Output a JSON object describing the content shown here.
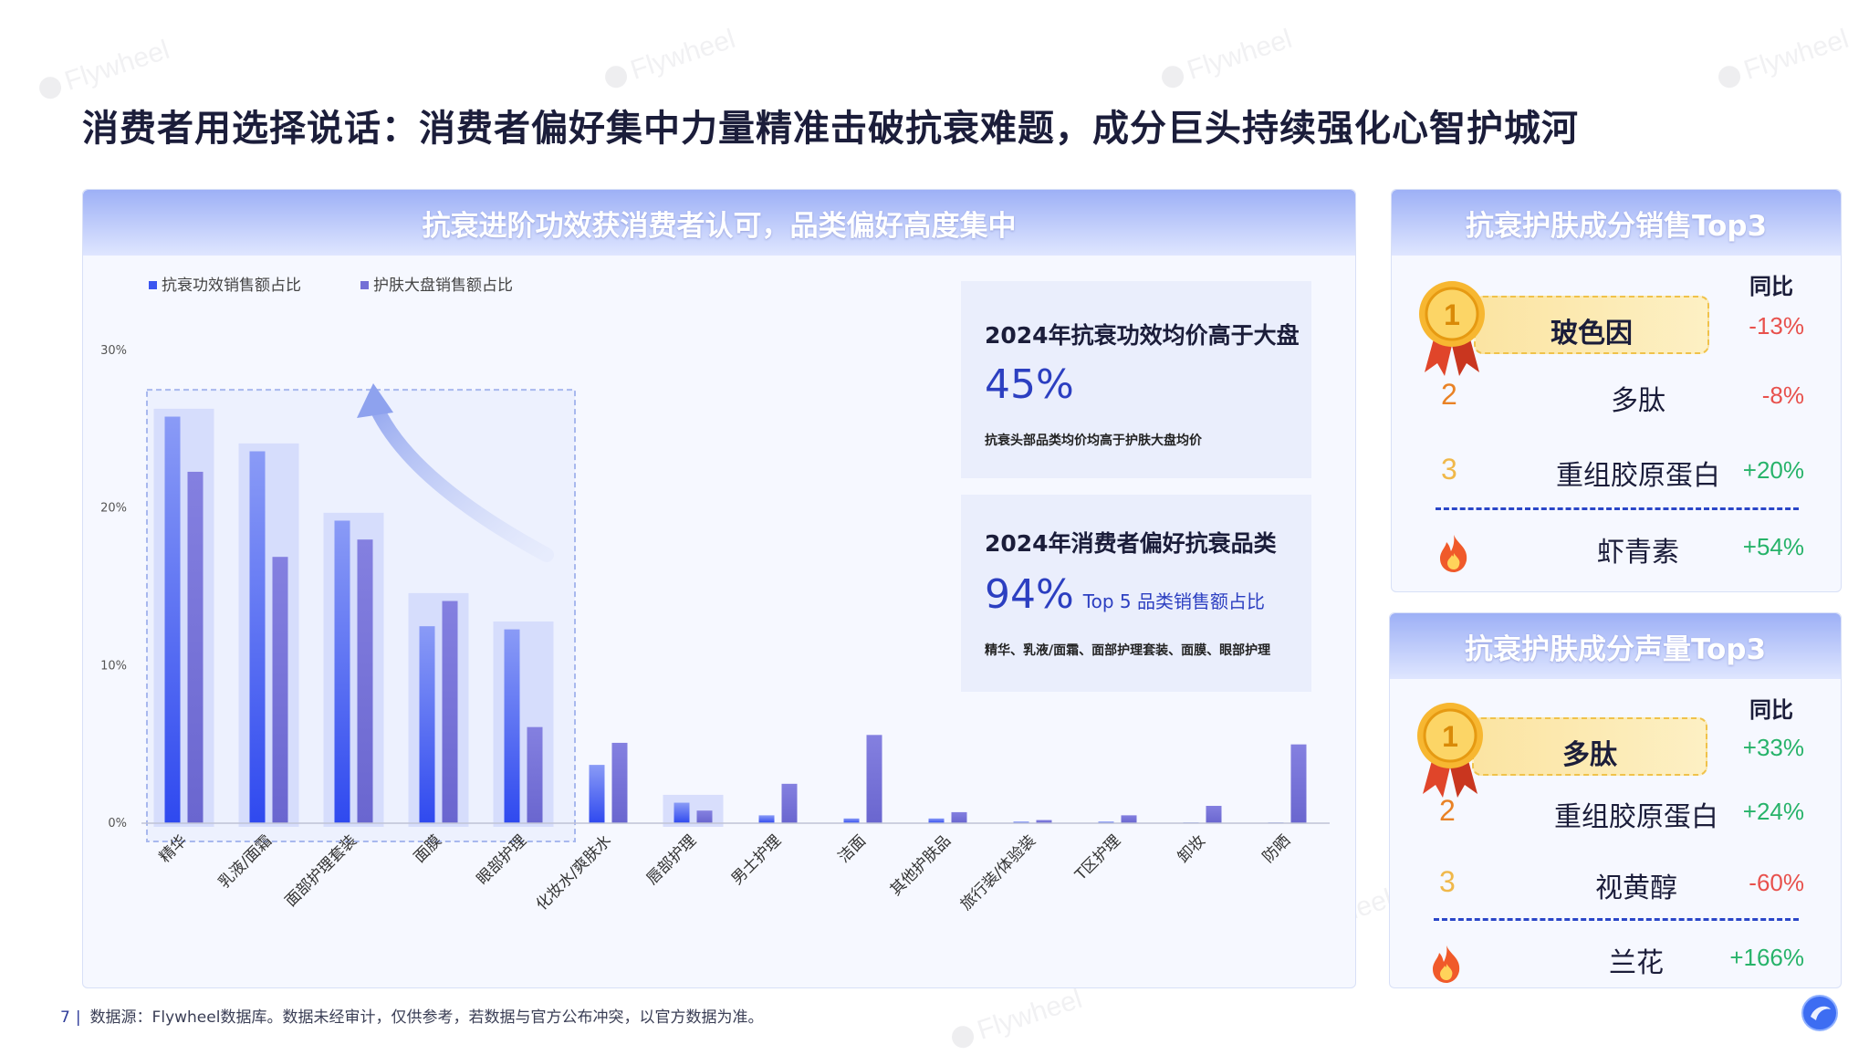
{
  "title": "消费者用选择说话：消费者偏好集中力量精准击破抗衰难题，成分巨头持续强化心智护城河",
  "watermark_text": "Flywheel",
  "left_panel": {
    "header": "抗衰进阶功效获消费者认可，品类偏好高度集中",
    "box1": {
      "title": "2024年抗衰功效均价高于大盘",
      "value": "45%",
      "note": "抗衰头部品类均价均高于护肤大盘均价"
    },
    "box2": {
      "title": "2024年消费者偏好抗衰品类",
      "value": "94%",
      "value_suffix": "Top 5 品类销售额占比",
      "note": "精华、乳液/面霜、面部护理套装、面膜、眼部护理"
    }
  },
  "chart_data": {
    "type": "bar",
    "categories": [
      "精华",
      "乳液/面霜",
      "面部护理套装",
      "面膜",
      "眼部护理",
      "化妆水/爽肤水",
      "唇部护理",
      "男士护理",
      "洁面",
      "其他护肤品",
      "旅行装/体验装",
      "T区护理",
      "卸妆",
      "防晒"
    ],
    "series": [
      {
        "name": "抗衰功效销售额占比",
        "values": [
          25.8,
          23.6,
          19.2,
          12.5,
          12.3,
          3.7,
          1.3,
          0.5,
          0.3,
          0.3,
          0.1,
          0.1,
          0.05,
          0.05
        ]
      },
      {
        "name": "护肤大盘销售额占比",
        "values": [
          22.3,
          16.9,
          18.0,
          14.1,
          6.1,
          5.1,
          0.8,
          2.5,
          5.6,
          0.7,
          0.2,
          0.5,
          1.1,
          5.0
        ]
      }
    ],
    "ylim": [
      0,
      30
    ],
    "yticks": [
      "0%",
      "10%",
      "20%",
      "30%"
    ],
    "ytick_values": [
      0,
      10,
      20,
      30
    ],
    "highlight_top_n": 5,
    "legend_position": "top-left",
    "grid": false,
    "colors": {
      "series1": "#3a55f0",
      "series2": "#7470d6",
      "highlight": "#cdd6fb"
    }
  },
  "sales_panel": {
    "header": "抗衰护肤成分销售Top3",
    "yoy_label": "同比",
    "items": [
      {
        "rank": "1",
        "name": "玻色因",
        "yoy": "-13%"
      },
      {
        "rank": "2",
        "name": "多肽",
        "yoy": "-8%"
      },
      {
        "rank": "3",
        "name": "重组胶原蛋白",
        "yoy": "+20%"
      }
    ],
    "hot": {
      "name": "虾青素",
      "yoy": "+54%"
    }
  },
  "volume_panel": {
    "header": "抗衰护肤成分声量Top3",
    "yoy_label": "同比",
    "items": [
      {
        "rank": "1",
        "name": "多肽",
        "yoy": "+33%"
      },
      {
        "rank": "2",
        "name": "重组胶原蛋白",
        "yoy": "+24%"
      },
      {
        "rank": "3",
        "name": "视黄醇",
        "yoy": "-60%"
      }
    ],
    "hot": {
      "name": "兰花",
      "yoy": "+166%"
    }
  },
  "footer": {
    "page": "7",
    "source": "数据源：Flywheel数据库。数据未经审计，仅供参考，若数据与官方公布冲突，以官方数据为准。"
  },
  "colors": {
    "negative": "#e8514d",
    "positive": "#27b36a",
    "rank1": "#f2a11a",
    "rank2": "#e98225",
    "rank3": "#f0b84a",
    "accent": "#2c3fc1"
  }
}
